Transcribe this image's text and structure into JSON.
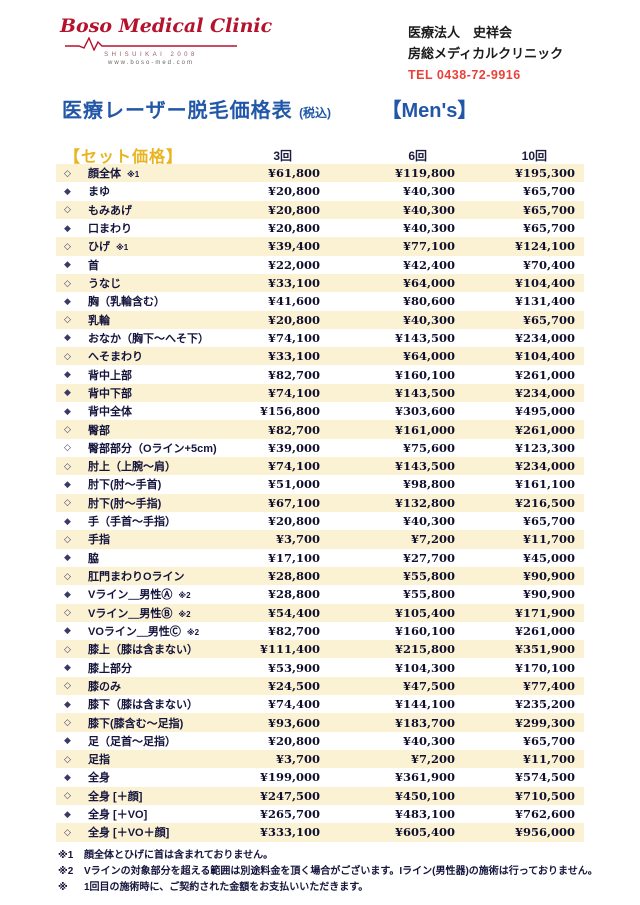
{
  "logo": {
    "name": "Boso Medical Clinic",
    "subtitle": "SHISUIKAI 2008",
    "url": "www.boso-med.com"
  },
  "clinic_info": {
    "line1": "医療法人　史祥会",
    "line2": "房総メディカルクリニック",
    "tel": "TEL  0438-72-9916"
  },
  "title": {
    "main": "医療レーザー脱毛価格表",
    "tax_note": "(税込)",
    "category": "【Men's】"
  },
  "colors": {
    "accent_blue": "#2257a8",
    "accent_red": "#e8413a",
    "logo_red": "#b5122e",
    "gold": "#e9b41f",
    "row_cream": "#fbf1d3",
    "text": "#14143c"
  },
  "table": {
    "header": {
      "label": "【セット価格】",
      "columns": [
        "3回",
        "6回",
        "10回"
      ]
    },
    "rows": [
      {
        "bullet": "open",
        "name": "顔全体",
        "note": "※1",
        "prices": [
          "¥61,800",
          "¥119,800",
          "¥195,300"
        ]
      },
      {
        "bullet": "filled",
        "name": "まゆ",
        "note": "",
        "prices": [
          "¥20,800",
          "¥40,300",
          "¥65,700"
        ]
      },
      {
        "bullet": "open",
        "name": "もみあげ",
        "note": "",
        "prices": [
          "¥20,800",
          "¥40,300",
          "¥65,700"
        ]
      },
      {
        "bullet": "filled",
        "name": "口まわり",
        "note": "",
        "prices": [
          "¥20,800",
          "¥40,300",
          "¥65,700"
        ]
      },
      {
        "bullet": "open",
        "name": "ひげ",
        "note": "※1",
        "prices": [
          "¥39,400",
          "¥77,100",
          "¥124,100"
        ]
      },
      {
        "bullet": "filled",
        "name": "首",
        "note": "",
        "prices": [
          "¥22,000",
          "¥42,400",
          "¥70,400"
        ]
      },
      {
        "bullet": "open",
        "name": "うなじ",
        "note": "",
        "prices": [
          "¥33,100",
          "¥64,000",
          "¥104,400"
        ]
      },
      {
        "bullet": "filled",
        "name": "胸（乳輪含む）",
        "note": "",
        "prices": [
          "¥41,600",
          "¥80,600",
          "¥131,400"
        ]
      },
      {
        "bullet": "open",
        "name": "乳輪",
        "note": "",
        "prices": [
          "¥20,800",
          "¥40,300",
          "¥65,700"
        ]
      },
      {
        "bullet": "filled",
        "name": "おなか（胸下～へそ下）",
        "note": "",
        "prices": [
          "¥74,100",
          "¥143,500",
          "¥234,000"
        ]
      },
      {
        "bullet": "open",
        "name": "へそまわり",
        "note": "",
        "prices": [
          "¥33,100",
          "¥64,000",
          "¥104,400"
        ]
      },
      {
        "bullet": "filled",
        "name": "背中上部",
        "note": "",
        "prices": [
          "¥82,700",
          "¥160,100",
          "¥261,000"
        ]
      },
      {
        "bullet": "filled",
        "name": "背中下部",
        "note": "",
        "prices": [
          "¥74,100",
          "¥143,500",
          "¥234,000"
        ]
      },
      {
        "bullet": "filled",
        "name": "背中全体",
        "note": "",
        "prices": [
          "¥156,800",
          "¥303,600",
          "¥495,000"
        ]
      },
      {
        "bullet": "open",
        "name": "臀部",
        "note": "",
        "prices": [
          "¥82,700",
          "¥161,000",
          "¥261,000"
        ]
      },
      {
        "bullet": "open",
        "name": "臀部部分（Oライン+5cm)",
        "note": "",
        "prices": [
          "¥39,000",
          "¥75,600",
          "¥123,300"
        ]
      },
      {
        "bullet": "open",
        "name": "肘上（上腕～肩）",
        "note": "",
        "prices": [
          "¥74,100",
          "¥143,500",
          "¥234,000"
        ]
      },
      {
        "bullet": "filled",
        "name": "肘下(肘～手首)",
        "note": "",
        "prices": [
          "¥51,000",
          "¥98,800",
          "¥161,100"
        ]
      },
      {
        "bullet": "open",
        "name": "肘下(肘～手指)",
        "note": "",
        "prices": [
          "¥67,100",
          "¥132,800",
          "¥216,500"
        ]
      },
      {
        "bullet": "filled",
        "name": "手（手首～手指）",
        "note": "",
        "prices": [
          "¥20,800",
          "¥40,300",
          "¥65,700"
        ]
      },
      {
        "bullet": "open",
        "name": "手指",
        "note": "",
        "prices": [
          "¥3,700",
          "¥7,200",
          "¥11,700"
        ]
      },
      {
        "bullet": "filled",
        "name": "脇",
        "note": "",
        "prices": [
          "¥17,100",
          "¥27,700",
          "¥45,000"
        ]
      },
      {
        "bullet": "open",
        "name": "肛門まわりOライン",
        "note": "",
        "prices": [
          "¥28,800",
          "¥55,800",
          "¥90,900"
        ]
      },
      {
        "bullet": "filled",
        "name": "Vライン＿男性Ⓐ",
        "note": "※2",
        "prices": [
          "¥28,800",
          "¥55,800",
          "¥90,900"
        ]
      },
      {
        "bullet": "open",
        "name": "Vライン＿男性Ⓑ",
        "note": "※2",
        "prices": [
          "¥54,400",
          "¥105,400",
          "¥171,900"
        ]
      },
      {
        "bullet": "filled",
        "name": "VOライン＿男性Ⓒ",
        "note": "※2",
        "prices": [
          "¥82,700",
          "¥160,100",
          "¥261,000"
        ]
      },
      {
        "bullet": "open",
        "name": "膝上（膝は含まない）",
        "note": "",
        "prices": [
          "¥111,400",
          "¥215,800",
          "¥351,900"
        ]
      },
      {
        "bullet": "filled",
        "name": "膝上部分",
        "note": "",
        "prices": [
          "¥53,900",
          "¥104,300",
          "¥170,100"
        ]
      },
      {
        "bullet": "open",
        "name": "膝のみ",
        "note": "",
        "prices": [
          "¥24,500",
          "¥47,500",
          "¥77,400"
        ]
      },
      {
        "bullet": "filled",
        "name": "膝下（膝は含まない）",
        "note": "",
        "prices": [
          "¥74,400",
          "¥144,100",
          "¥235,200"
        ]
      },
      {
        "bullet": "open",
        "name": "膝下(膝含む～足指)",
        "note": "",
        "prices": [
          "¥93,600",
          "¥183,700",
          "¥299,300"
        ]
      },
      {
        "bullet": "filled",
        "name": "足（足首～足指）",
        "note": "",
        "prices": [
          "¥20,800",
          "¥40,300",
          "¥65,700"
        ]
      },
      {
        "bullet": "open",
        "name": "足指",
        "note": "",
        "prices": [
          "¥3,700",
          "¥7,200",
          "¥11,700"
        ]
      },
      {
        "bullet": "filled",
        "name": "全身",
        "note": "",
        "prices": [
          "¥199,000",
          "¥361,900",
          "¥574,500"
        ]
      },
      {
        "bullet": "open",
        "name": "全身 [＋顔]",
        "note": "",
        "prices": [
          "¥247,500",
          "¥450,100",
          "¥710,500"
        ]
      },
      {
        "bullet": "filled",
        "name": "全身 [＋VO]",
        "note": "",
        "prices": [
          "¥265,700",
          "¥483,100",
          "¥762,600"
        ]
      },
      {
        "bullet": "open",
        "name": "全身 [＋VO＋顔]",
        "note": "",
        "prices": [
          "¥333,100",
          "¥605,400",
          "¥956,000"
        ]
      }
    ]
  },
  "footnotes": [
    {
      "marker": "※1",
      "text": "顔全体とひげに首は含まれておりません。"
    },
    {
      "marker": "※2",
      "text": "Vラインの対象部分を超える範囲は別途料金を頂く場合がございます。Iライン(男性器)の施術は行っておりません。"
    },
    {
      "marker": "※",
      "text": "1回目の施術時に、ご契約された金額をお支払いいただきます。"
    }
  ]
}
